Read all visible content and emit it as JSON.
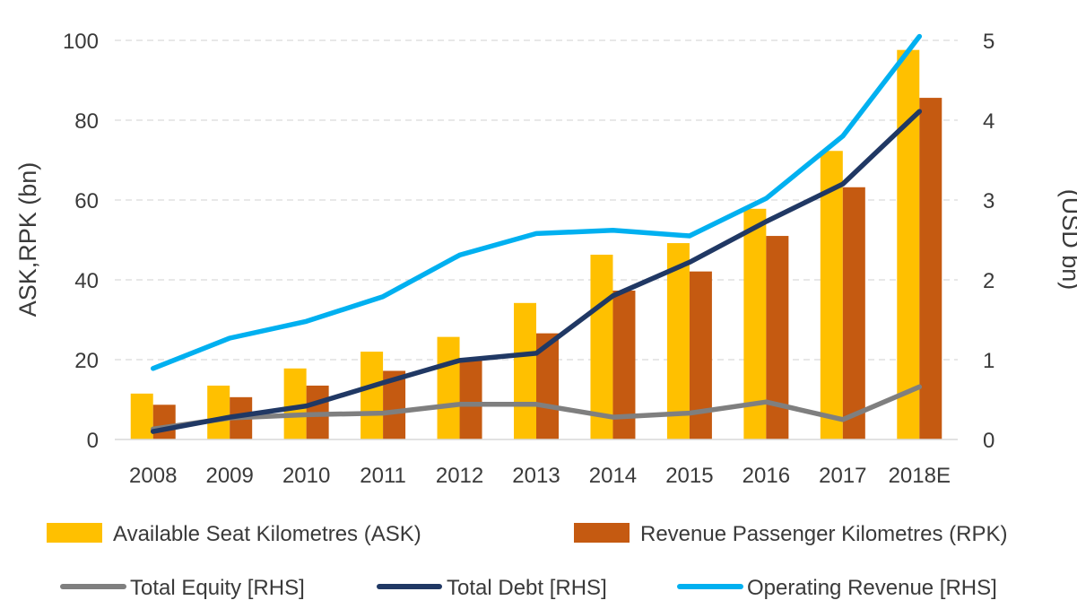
{
  "chart_data": {
    "type": "bar",
    "categories": [
      "2008",
      "2009",
      "2010",
      "2011",
      "2012",
      "2013",
      "2014",
      "2015",
      "2016",
      "2017",
      "2018E"
    ],
    "ylabel": "ASK,RPK (bn)",
    "y2label": "(USD bn)",
    "ylim": [
      0,
      100
    ],
    "y2lim": [
      0,
      5
    ],
    "yticks": [
      0,
      20,
      40,
      60,
      80,
      100
    ],
    "y2ticks": [
      0,
      1,
      2,
      3,
      4,
      5
    ],
    "grid": true,
    "legend_position": "bottom",
    "bar_series": [
      {
        "name": "Available Seat Kilometres (ASK)",
        "color": "#FFC000",
        "values": [
          11.5,
          13.5,
          17.8,
          22,
          25.7,
          34.2,
          46.3,
          49.2,
          57.8,
          72.3,
          97.6
        ]
      },
      {
        "name": "Revenue Passenger Kilometres (RPK)",
        "color": "#C55A11",
        "values": [
          8.7,
          10.6,
          13.5,
          17.2,
          19.9,
          26.6,
          37.3,
          42.1,
          51,
          63.2,
          85.6
        ]
      }
    ],
    "line_series": [
      {
        "name": "Total Equity [RHS]",
        "color": "#7F7F7F",
        "axis": "right",
        "values": [
          0.13,
          0.27,
          0.31,
          0.33,
          0.44,
          0.44,
          0.28,
          0.33,
          0.47,
          0.25,
          0.66
        ]
      },
      {
        "name": "Total Debt [RHS]",
        "color": "#203864",
        "axis": "right",
        "values": [
          0.1,
          0.28,
          0.42,
          0.71,
          0.99,
          1.08,
          1.8,
          2.22,
          2.73,
          3.2,
          4.11
        ]
      },
      {
        "name": "Operating Revenue [RHS]",
        "color": "#00B0F0",
        "axis": "right",
        "values": [
          0.89,
          1.27,
          1.48,
          1.79,
          2.31,
          2.58,
          2.62,
          2.55,
          3.02,
          3.8,
          5.05
        ]
      }
    ]
  }
}
